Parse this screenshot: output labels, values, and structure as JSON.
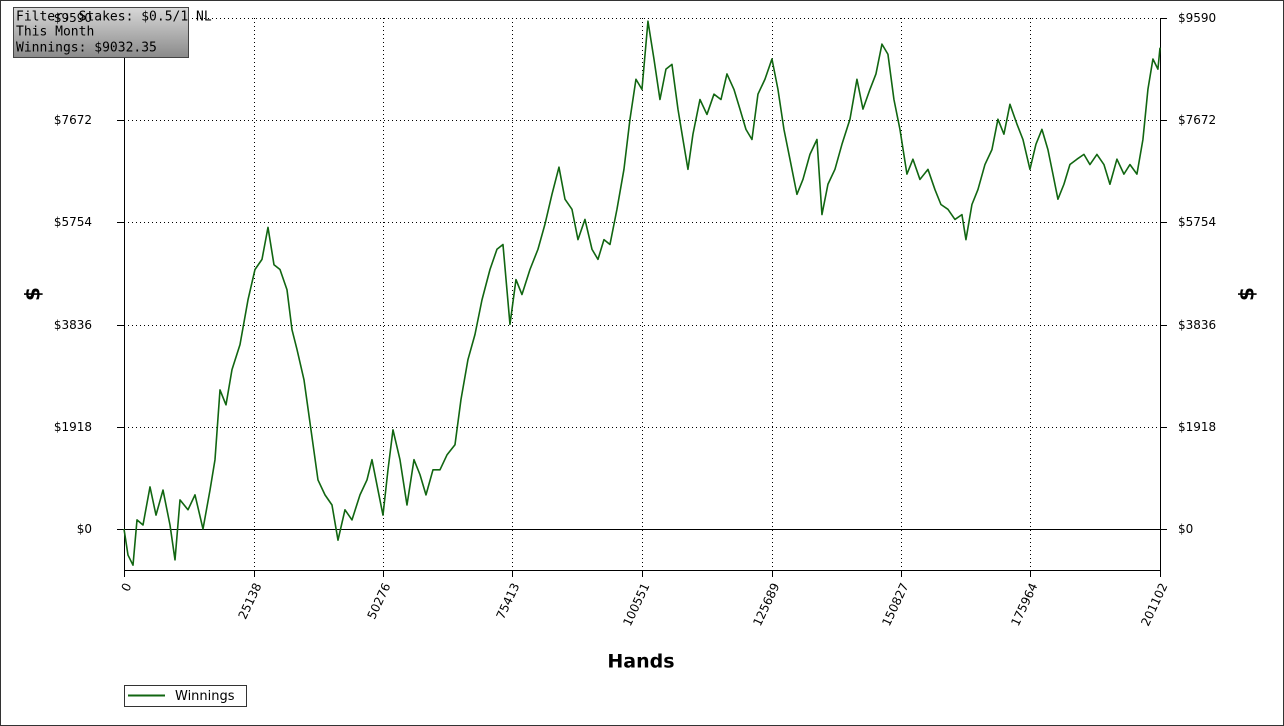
{
  "chart_data": {
    "type": "line",
    "info_box": [
      "Filter: Stakes: $0.5/1 NL",
      "This Month",
      "Winnings: $9032.35"
    ],
    "x_label": "Hands",
    "y_label": "$",
    "y2_label": "$",
    "xlim": [
      0,
      201102
    ],
    "xticks": [
      0,
      25138,
      50276,
      75413,
      100551,
      125689,
      150827,
      175964,
      201102
    ],
    "ylim": [
      -770,
      9590
    ],
    "yticks": [
      {
        "value": 0,
        "label": "$0"
      },
      {
        "value": 1918,
        "label": "$1918"
      },
      {
        "value": 3836,
        "label": "$3836"
      },
      {
        "value": 5754,
        "label": "$5754"
      },
      {
        "value": 7672,
        "label": "$7672"
      },
      {
        "value": 9590,
        "label": "$9590"
      }
    ],
    "grid": true,
    "legend": "bottom-left",
    "x": [
      0,
      776,
      1747,
      2523,
      3688,
      5047,
      6211,
      7570,
      8929,
      9899,
      10870,
      12422,
      13781,
      15334,
      16693,
      17663,
      18634,
      19798,
      20963,
      22516,
      24069,
      25427,
      26786,
      27950,
      29115,
      30280,
      31638,
      32609,
      33579,
      34938,
      36297,
      37655,
      39014,
      40373,
      41537,
      42896,
      44255,
      45808,
      47166,
      48137,
      49301,
      50272,
      51243,
      52213,
      53572,
      54930,
      56289,
      57454,
      58618,
      59977,
      61336,
      62694,
      64247,
      65412,
      66770,
      68129,
      69488,
      71041,
      72399,
      73564,
      74922,
      76087,
      77252,
      78805,
      80357,
      81716,
      83075,
      84434,
      85598,
      86957,
      88121,
      89480,
      90839,
      92003,
      93168,
      94333,
      95691,
      97050,
      98215,
      99379,
      100544,
      101708,
      102873,
      104038,
      105202,
      106367,
      107531,
      108502,
      109472,
      110443,
      111802,
      113160,
      114519,
      115878,
      117042,
      118401,
      119566,
      120730,
      121895,
      123059,
      124418,
      125777,
      126941,
      128106,
      129271,
      130629,
      131794,
      133153,
      134511,
      135482,
      136646,
      138005,
      139364,
      140917,
      142275,
      143440,
      144799,
      145963,
      147128,
      148292,
      149457,
      150622,
      151980,
      153145,
      154504,
      156056,
      157415,
      158580,
      159938,
      161297,
      162656,
      163432,
      164597,
      165761,
      167120,
      168479,
      169644,
      170808,
      171973,
      173331,
      174496,
      175855,
      177019,
      178184,
      179348,
      180319,
      181289,
      182454,
      183619,
      184977,
      186336,
      187501,
      188859,
      190218,
      191383,
      192741,
      194100,
      195265,
      196623,
      197788,
      198758,
      199729,
      200699,
      201102
    ],
    "series": [
      {
        "name": "Winnings",
        "color": "#116611",
        "values": [
          0,
          -490,
          -680,
          170,
          75,
          790,
          260,
          730,
          75,
          -580,
          545,
          360,
          640,
          0,
          730,
          1300,
          2610,
          2330,
          2990,
          3460,
          4300,
          4870,
          5060,
          5660,
          4960,
          4870,
          4490,
          3740,
          3370,
          2800,
          1860,
          920,
          640,
          450,
          -210,
          360,
          170,
          640,
          920,
          1300,
          730,
          260,
          1110,
          1860,
          1300,
          450,
          1300,
          1020,
          640,
          1110,
          1110,
          1390,
          1580,
          2430,
          3180,
          3650,
          4300,
          4870,
          5250,
          5340,
          3840,
          4680,
          4400,
          4870,
          5250,
          5720,
          6280,
          6790,
          6190,
          6000,
          5430,
          5810,
          5250,
          5060,
          5430,
          5340,
          6000,
          6750,
          7690,
          8440,
          8250,
          9530,
          8820,
          8060,
          8630,
          8720,
          7880,
          7310,
          6750,
          7410,
          8060,
          7780,
          8160,
          8060,
          8540,
          8250,
          7880,
          7500,
          7310,
          8160,
          8440,
          8820,
          8250,
          7500,
          6940,
          6280,
          6560,
          7030,
          7310,
          5900,
          6470,
          6750,
          7220,
          7690,
          8440,
          7880,
          8250,
          8540,
          9100,
          8910,
          8060,
          7500,
          6660,
          6940,
          6560,
          6750,
          6370,
          6090,
          6000,
          5810,
          5900,
          5430,
          6090,
          6370,
          6840,
          7120,
          7690,
          7410,
          7970,
          7600,
          7310,
          6750,
          7220,
          7500,
          7120,
          6660,
          6190,
          6470,
          6840,
          6940,
          7030,
          6840,
          7030,
          6840,
          6470,
          6940,
          6660,
          6840,
          6660,
          7310,
          8250,
          8820,
          8630,
          9032.35
        ]
      }
    ]
  }
}
